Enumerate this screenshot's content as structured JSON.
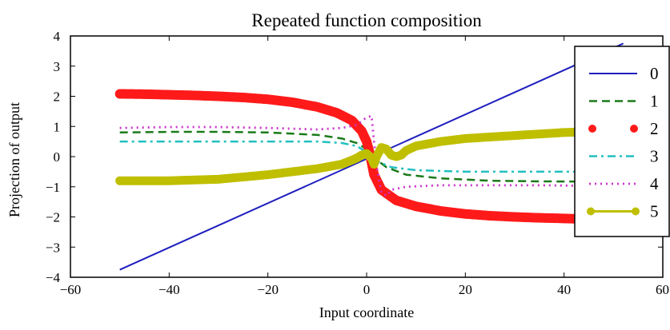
{
  "chart_data": {
    "type": "line",
    "title": "Repeated function composition",
    "xlabel": "Input coordinate",
    "ylabel": "Projection of output",
    "xlim": [
      -60,
      60
    ],
    "ylim": [
      -4,
      4
    ],
    "xticks": [
      -60,
      -40,
      -20,
      0,
      20,
      40,
      60
    ],
    "yticks": [
      -4,
      -3,
      -2,
      -1,
      0,
      1,
      2,
      3,
      4
    ],
    "xtick_labels": [
      "−60",
      "−40",
      "−20",
      "0",
      "20",
      "40",
      "60"
    ],
    "ytick_labels": [
      "−4",
      "−3",
      "−2",
      "−1",
      "0",
      "1",
      "2",
      "3",
      "4"
    ],
    "grid": false,
    "legend_position": "right",
    "series": [
      {
        "name": "0",
        "color": "#1f1fbf",
        "style": "solid",
        "points": [
          [
            -50,
            -3.75
          ],
          [
            52,
            3.75
          ]
        ]
      },
      {
        "name": "1",
        "color": "#1a7a1a",
        "style": "dashdash",
        "points": [
          [
            -50,
            0.8
          ],
          [
            -40,
            0.82
          ],
          [
            -30,
            0.82
          ],
          [
            -20,
            0.8
          ],
          [
            -10,
            0.72
          ],
          [
            -5,
            0.6
          ],
          [
            -2,
            0.45
          ],
          [
            0,
            0.25
          ],
          [
            1,
            0.1
          ],
          [
            2,
            -0.1
          ],
          [
            4,
            -0.35
          ],
          [
            8,
            -0.6
          ],
          [
            15,
            -0.72
          ],
          [
            25,
            -0.8
          ],
          [
            35,
            -0.82
          ],
          [
            45,
            -0.83
          ]
        ]
      },
      {
        "name": "2",
        "color": "#ff1a1a",
        "style": "markers",
        "points": [
          [
            -50,
            2.08
          ],
          [
            -45,
            2.07
          ],
          [
            -40,
            2.05
          ],
          [
            -35,
            2.03
          ],
          [
            -30,
            2.0
          ],
          [
            -25,
            1.96
          ],
          [
            -20,
            1.9
          ],
          [
            -15,
            1.8
          ],
          [
            -10,
            1.65
          ],
          [
            -6,
            1.45
          ],
          [
            -3,
            1.2
          ],
          [
            -1,
            0.85
          ],
          [
            0,
            0.5
          ],
          [
            0.5,
            0.2
          ],
          [
            1,
            -0.2
          ],
          [
            1.5,
            -0.6
          ],
          [
            3,
            -1.1
          ],
          [
            6,
            -1.45
          ],
          [
            10,
            -1.65
          ],
          [
            15,
            -1.8
          ],
          [
            20,
            -1.9
          ],
          [
            25,
            -1.96
          ],
          [
            30,
            -2.0
          ],
          [
            35,
            -2.03
          ],
          [
            40,
            -2.05
          ],
          [
            44,
            -2.07
          ]
        ]
      },
      {
        "name": "3",
        "color": "#22bfbf",
        "style": "dashdot",
        "points": [
          [
            -50,
            0.5
          ],
          [
            -40,
            0.5
          ],
          [
            -30,
            0.5
          ],
          [
            -20,
            0.5
          ],
          [
            -10,
            0.5
          ],
          [
            -5,
            0.45
          ],
          [
            -2,
            0.35
          ],
          [
            0,
            0.15
          ],
          [
            2,
            -0.15
          ],
          [
            5,
            -0.35
          ],
          [
            10,
            -0.45
          ],
          [
            20,
            -0.5
          ],
          [
            30,
            -0.5
          ],
          [
            40,
            -0.5
          ],
          [
            45,
            -0.5
          ]
        ]
      },
      {
        "name": "4",
        "color": "#cc33cc",
        "style": "dotted",
        "points": [
          [
            -50,
            0.95
          ],
          [
            -40,
            0.98
          ],
          [
            -30,
            0.98
          ],
          [
            -20,
            0.95
          ],
          [
            -10,
            0.9
          ],
          [
            -5,
            0.95
          ],
          [
            -2,
            1.05
          ],
          [
            0,
            1.3
          ],
          [
            1,
            1.35
          ],
          [
            1.5,
            0.5
          ],
          [
            2,
            -0.3
          ],
          [
            3,
            -1.2
          ],
          [
            4,
            -1.3
          ],
          [
            5,
            -1.1
          ],
          [
            8,
            -1.0
          ],
          [
            15,
            -0.95
          ],
          [
            25,
            -0.95
          ],
          [
            35,
            -0.95
          ],
          [
            45,
            -0.97
          ],
          [
            47,
            -0.98
          ]
        ]
      },
      {
        "name": "5",
        "color": "#bfbf00",
        "style": "solid-markers",
        "points": [
          [
            -50,
            -0.8
          ],
          [
            -40,
            -0.8
          ],
          [
            -30,
            -0.75
          ],
          [
            -20,
            -0.6
          ],
          [
            -10,
            -0.4
          ],
          [
            -5,
            -0.25
          ],
          [
            -3,
            -0.12
          ],
          [
            -2,
            -0.05
          ],
          [
            -1,
            0.05
          ],
          [
            0,
            0.1
          ],
          [
            1,
            -0.05
          ],
          [
            1.5,
            -0.25
          ],
          [
            2,
            0.0
          ],
          [
            3,
            0.3
          ],
          [
            4,
            0.25
          ],
          [
            5,
            0.05
          ],
          [
            6,
            0.0
          ],
          [
            7,
            0.05
          ],
          [
            8,
            0.2
          ],
          [
            10,
            0.35
          ],
          [
            15,
            0.5
          ],
          [
            20,
            0.6
          ],
          [
            30,
            0.7
          ],
          [
            40,
            0.8
          ],
          [
            45,
            0.82
          ]
        ]
      }
    ]
  }
}
